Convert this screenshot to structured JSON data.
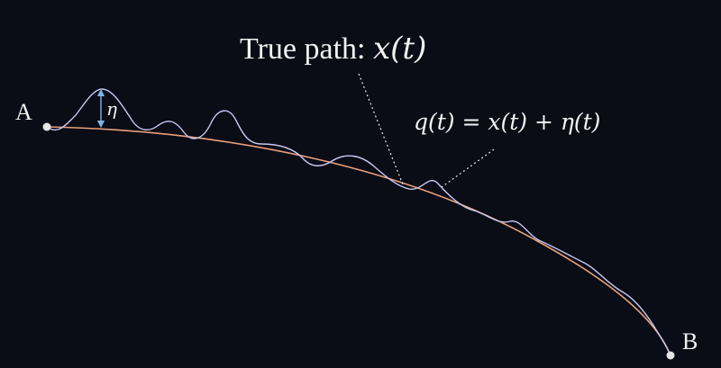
{
  "labels": {
    "start_point": "A",
    "end_point": "B",
    "true_path_text": "True path: ",
    "true_path_math": "x(t)",
    "perturbed_path_math": "q(t) = x(t) + η(t)",
    "eta_symbol": "η"
  },
  "colors": {
    "background": "#0a0c16",
    "true_path": "#e7a07c",
    "perturbed_path": "#c8c8f0",
    "eta_marker": "#7fb3e6",
    "text": "#f2f2f2",
    "points": "#e6e6e6"
  }
}
